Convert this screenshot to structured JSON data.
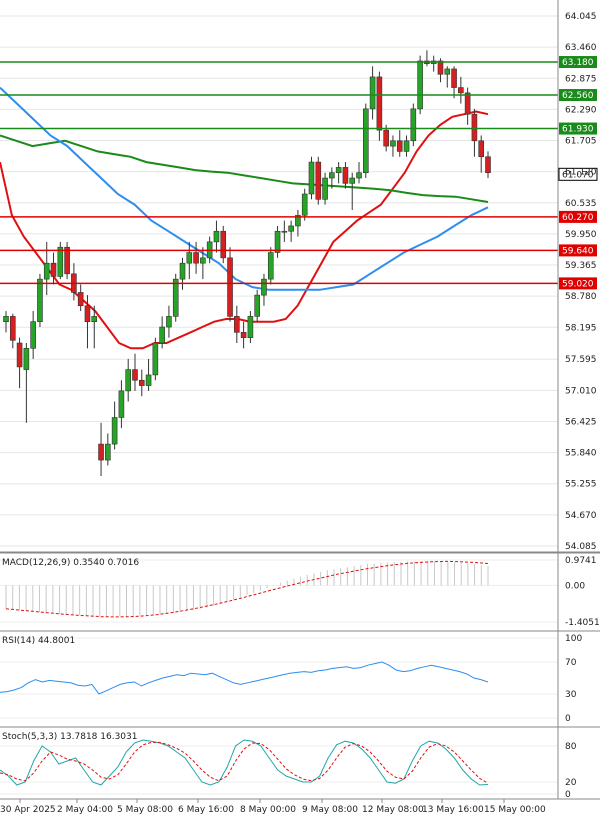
{
  "chart_data": {
    "type": "candlestick",
    "price_axis": {
      "ticks": [
        "64.045",
        "63.460",
        "62.875",
        "62.290",
        "61.705",
        "61.120",
        "60.535",
        "59.950",
        "59.365",
        "58.780",
        "58.195",
        "57.595",
        "57.010",
        "56.425",
        "55.840",
        "55.255",
        "54.670",
        "54.085"
      ],
      "range": [
        54.085,
        64.045
      ]
    },
    "current_price": {
      "value": "61.070",
      "color": "#000000"
    },
    "levels": [
      {
        "value": "63.180",
        "color": "#1a8a1a"
      },
      {
        "value": "62.560",
        "color": "#1a8a1a"
      },
      {
        "value": "61.930",
        "color": "#1a8a1a"
      },
      {
        "value": "60.270",
        "color": "#e00000"
      },
      {
        "value": "59.640",
        "color": "#e00000"
      },
      {
        "value": "59.020",
        "color": "#e00000"
      }
    ],
    "x_axis_labels": [
      "30 Apr 2025",
      "2 May 04:00",
      "5 May 08:00",
      "6 May 16:00",
      "8 May 00:00",
      "9 May 08:00",
      "12 May 08:00",
      "13 May 16:00",
      "15 May 00:00"
    ],
    "candles": [
      [
        58.3,
        58.5,
        58.1,
        58.4
      ],
      [
        58.4,
        58.45,
        57.8,
        57.95
      ],
      [
        57.9,
        58.0,
        57.05,
        57.45
      ],
      [
        57.4,
        57.9,
        56.4,
        57.8
      ],
      [
        57.8,
        58.5,
        57.6,
        58.3
      ],
      [
        58.3,
        59.2,
        58.2,
        59.1
      ],
      [
        59.1,
        59.8,
        58.8,
        59.4
      ],
      [
        59.4,
        59.6,
        59.0,
        59.15
      ],
      [
        59.15,
        59.8,
        59.1,
        59.7
      ],
      [
        59.7,
        59.8,
        59.1,
        59.2
      ],
      [
        59.2,
        59.4,
        58.7,
        58.85
      ],
      [
        58.85,
        59.0,
        58.5,
        58.6
      ],
      [
        58.6,
        58.8,
        57.8,
        58.3
      ],
      [
        58.3,
        58.6,
        57.8,
        58.4
      ],
      [
        56.0,
        56.4,
        55.4,
        55.7
      ],
      [
        55.7,
        56.2,
        55.6,
        56.0
      ],
      [
        56.0,
        56.8,
        55.9,
        56.5
      ],
      [
        56.5,
        57.2,
        56.3,
        57.0
      ],
      [
        57.0,
        57.6,
        56.8,
        57.4
      ],
      [
        57.4,
        57.7,
        57.0,
        57.2
      ],
      [
        57.2,
        57.4,
        56.9,
        57.1
      ],
      [
        57.1,
        57.6,
        57.0,
        57.3
      ],
      [
        57.3,
        58.0,
        57.2,
        57.9
      ],
      [
        57.9,
        58.4,
        57.8,
        58.2
      ],
      [
        58.2,
        58.6,
        58.0,
        58.4
      ],
      [
        58.4,
        59.2,
        58.3,
        59.1
      ],
      [
        59.1,
        59.5,
        58.9,
        59.4
      ],
      [
        59.4,
        59.8,
        59.1,
        59.6
      ],
      [
        59.6,
        59.8,
        59.2,
        59.4
      ],
      [
        59.4,
        59.7,
        59.1,
        59.5
      ],
      [
        59.5,
        59.9,
        59.4,
        59.8
      ],
      [
        59.8,
        60.2,
        59.6,
        60.0
      ],
      [
        60.0,
        60.1,
        59.4,
        59.5
      ],
      [
        59.5,
        59.7,
        58.3,
        58.4
      ],
      [
        58.4,
        58.6,
        57.9,
        58.1
      ],
      [
        58.1,
        58.3,
        57.8,
        58.0
      ],
      [
        58.0,
        58.5,
        57.9,
        58.4
      ],
      [
        58.4,
        58.9,
        58.3,
        58.8
      ],
      [
        58.8,
        59.2,
        58.6,
        59.1
      ],
      [
        59.1,
        59.7,
        59.0,
        59.6
      ],
      [
        59.6,
        60.1,
        59.5,
        60.0
      ],
      [
        60.0,
        60.2,
        59.8,
        60.0
      ],
      [
        60.0,
        60.2,
        59.8,
        60.1
      ],
      [
        60.1,
        60.4,
        59.9,
        60.3
      ],
      [
        60.3,
        60.8,
        60.2,
        60.7
      ],
      [
        60.7,
        61.4,
        60.6,
        61.3
      ],
      [
        61.3,
        61.4,
        60.5,
        60.6
      ],
      [
        60.6,
        61.1,
        60.5,
        61.0
      ],
      [
        61.0,
        61.2,
        60.8,
        61.1
      ],
      [
        61.1,
        61.3,
        60.9,
        61.2
      ],
      [
        61.2,
        61.3,
        60.8,
        60.9
      ],
      [
        60.9,
        61.1,
        60.4,
        61.0
      ],
      [
        61.0,
        61.3,
        60.9,
        61.1
      ],
      [
        61.1,
        62.4,
        61.0,
        62.3
      ],
      [
        62.3,
        63.1,
        62.1,
        62.9
      ],
      [
        62.9,
        63.0,
        61.7,
        61.9
      ],
      [
        61.9,
        62.0,
        61.5,
        61.6
      ],
      [
        61.6,
        61.8,
        61.4,
        61.7
      ],
      [
        61.7,
        61.9,
        61.4,
        61.5
      ],
      [
        61.5,
        61.8,
        61.4,
        61.7
      ],
      [
        61.7,
        62.4,
        61.6,
        62.3
      ],
      [
        62.3,
        63.3,
        62.2,
        63.2
      ],
      [
        63.2,
        63.4,
        63.1,
        63.15
      ],
      [
        63.15,
        63.3,
        63.0,
        63.2
      ],
      [
        63.2,
        63.25,
        62.8,
        62.95
      ],
      [
        62.95,
        63.1,
        62.7,
        63.05
      ],
      [
        63.05,
        63.1,
        62.5,
        62.7
      ],
      [
        62.7,
        62.9,
        62.4,
        62.6
      ],
      [
        62.6,
        62.7,
        62.0,
        62.2
      ],
      [
        62.2,
        62.3,
        61.4,
        61.7
      ],
      [
        61.7,
        61.8,
        61.1,
        61.4
      ],
      [
        61.4,
        61.5,
        61.0,
        61.1
      ]
    ],
    "series": [
      {
        "name": "ma_red",
        "color": "#e01010",
        "values": [
          61.3,
          60.3,
          59.9,
          59.6,
          59.3,
          59.0,
          58.9,
          58.7,
          58.5,
          58.2,
          57.9,
          57.8,
          57.8,
          57.9,
          57.9,
          58.0,
          58.1,
          58.2,
          58.3,
          58.35,
          58.35,
          58.3,
          58.3,
          58.3,
          58.35,
          58.6,
          59.0,
          59.4,
          59.8,
          60.0,
          60.2,
          60.35,
          60.5,
          60.8,
          61.1,
          61.5,
          61.8,
          62.0,
          62.15,
          62.2,
          62.25,
          62.2
        ]
      },
      {
        "name": "ma_green",
        "color": "#1a8a1a",
        "values": [
          61.8,
          61.7,
          61.6,
          61.65,
          61.7,
          61.6,
          61.5,
          61.45,
          61.4,
          61.3,
          61.25,
          61.2,
          61.15,
          61.12,
          61.1,
          61.05,
          61.0,
          60.95,
          60.9,
          60.88,
          60.86,
          60.84,
          60.82,
          60.8,
          60.77,
          60.72,
          60.68,
          60.66,
          60.65,
          60.6,
          60.55
        ]
      },
      {
        "name": "ma_blue",
        "color": "#2d8ef0",
        "values": [
          62.7,
          62.4,
          62.1,
          61.8,
          61.6,
          61.3,
          61.0,
          60.7,
          60.5,
          60.2,
          60.0,
          59.8,
          59.6,
          59.4,
          59.1,
          58.95,
          58.9,
          58.9,
          58.9,
          58.9,
          58.95,
          59.0,
          59.2,
          59.4,
          59.6,
          59.75,
          59.9,
          60.1,
          60.3,
          60.45
        ]
      }
    ],
    "indicators": [
      {
        "label": "MACD(12,26,9) 0.3540 0.7016",
        "ticks": [
          "0.9741",
          "0.00",
          "-1.4051"
        ],
        "range": [
          -1.4051,
          0.9741
        ],
        "histogram": [
          -0.9,
          -0.92,
          -0.95,
          -0.98,
          -1.0,
          -1.02,
          -1.05,
          -1.08,
          -1.1,
          -1.12,
          -1.14,
          -1.15,
          -1.16,
          -1.17,
          -1.18,
          -1.19,
          -1.2,
          -1.2,
          -1.19,
          -1.18,
          -1.16,
          -1.14,
          -1.12,
          -1.1,
          -1.08,
          -1.05,
          -1.02,
          -0.98,
          -0.95,
          -0.9,
          -0.85,
          -0.78,
          -0.7,
          -0.62,
          -0.55,
          -0.46,
          -0.38,
          -0.3,
          -0.2,
          -0.1,
          0.0,
          0.1,
          0.18,
          0.26,
          0.34,
          0.4,
          0.46,
          0.52,
          0.58,
          0.62,
          0.66,
          0.7,
          0.74,
          0.78,
          0.82,
          0.84,
          0.86,
          0.88,
          0.9,
          0.91,
          0.92,
          0.92,
          0.93,
          0.93,
          0.92,
          0.91,
          0.9,
          0.88,
          0.86,
          0.84,
          0.82,
          0.78,
          0.74
        ],
        "signal": [
          -0.9,
          -0.95,
          -1.0,
          -1.05,
          -1.1,
          -1.14,
          -1.17,
          -1.2,
          -1.21,
          -1.2,
          -1.17,
          -1.12,
          -1.05,
          -0.96,
          -0.86,
          -0.75,
          -0.63,
          -0.5,
          -0.36,
          -0.22,
          -0.08,
          0.05,
          0.18,
          0.3,
          0.42,
          0.52,
          0.62,
          0.7,
          0.78,
          0.84,
          0.88,
          0.91,
          0.92,
          0.91,
          0.88,
          0.84
        ]
      },
      {
        "label": "RSI(14) 44.8001",
        "ticks": [
          "100",
          "70",
          "30",
          "0"
        ],
        "range": [
          0,
          100
        ],
        "values": [
          32,
          33,
          35,
          38,
          44,
          48,
          45,
          47,
          46,
          45,
          44,
          41,
          40,
          42,
          30,
          34,
          38,
          42,
          44,
          45,
          40,
          44,
          47,
          50,
          52,
          54,
          53,
          56,
          55,
          54,
          56,
          52,
          48,
          44,
          42,
          44,
          46,
          48,
          50,
          52,
          54,
          56,
          57,
          58,
          57,
          59,
          60,
          62,
          63,
          64,
          62,
          63,
          66,
          68,
          70,
          66,
          60,
          58,
          59,
          62,
          64,
          66,
          64,
          62,
          60,
          58,
          55,
          50,
          48,
          45
        ]
      },
      {
        "label": "Stoch(5,3,3) 13.7818 16.3031",
        "ticks": [
          "80",
          "20",
          "0"
        ],
        "range": [
          0,
          100
        ],
        "k": [
          40,
          30,
          15,
          20,
          55,
          80,
          70,
          50,
          55,
          60,
          40,
          20,
          15,
          30,
          45,
          70,
          85,
          90,
          88,
          85,
          80,
          70,
          60,
          40,
          20,
          15,
          20,
          45,
          80,
          90,
          88,
          80,
          60,
          40,
          30,
          25,
          20,
          20,
          30,
          60,
          82,
          88,
          85,
          75,
          60,
          40,
          20,
          18,
          25,
          55,
          80,
          88,
          85,
          75,
          60,
          40,
          25,
          15,
          16
        ],
        "d": [
          35,
          32,
          25,
          22,
          35,
          55,
          70,
          65,
          58,
          55,
          50,
          40,
          28,
          25,
          32,
          50,
          70,
          82,
          86,
          86,
          82,
          76,
          68,
          55,
          40,
          28,
          22,
          30,
          55,
          75,
          85,
          84,
          74,
          58,
          42,
          32,
          25,
          22,
          26,
          40,
          60,
          78,
          84,
          80,
          70,
          55,
          38,
          28,
          25,
          38,
          60,
          78,
          84,
          80,
          70,
          55,
          40,
          26,
          18
        ]
      }
    ]
  }
}
